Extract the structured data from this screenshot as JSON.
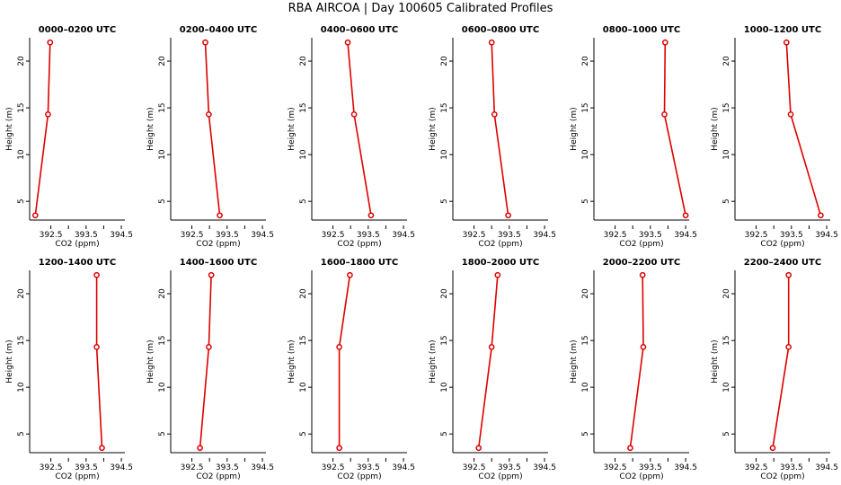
{
  "figure": {
    "title": "RBA AIRCOA | Day 100605 Calibrated Profiles"
  },
  "colors": {
    "series": "#dd0000",
    "axes": "#000000",
    "background": "#ffffff"
  },
  "chart_data": [
    {
      "type": "line",
      "title": "0000–0200 UTC",
      "xlabel": "CO2 (ppm)",
      "ylabel": "Height (m)",
      "xlim": [
        391.9,
        394.6
      ],
      "ylim": [
        3,
        22.5
      ],
      "xticks": [
        "392.5",
        "393.5",
        "394.5"
      ],
      "yticks": [
        "5",
        "10",
        "15",
        "20"
      ],
      "x": [
        392.48,
        392.42,
        392.06
      ],
      "y": [
        22,
        14.3,
        3.5
      ]
    },
    {
      "type": "line",
      "title": "0200–0400 UTC",
      "xlabel": "CO2 (ppm)",
      "ylabel": "Height (m)",
      "xlim": [
        391.9,
        394.6
      ],
      "ylim": [
        3,
        22.5
      ],
      "xticks": [
        "392.5",
        "393.5",
        "394.5"
      ],
      "yticks": [
        "5",
        "10",
        "15",
        "20"
      ],
      "x": [
        392.88,
        392.98,
        393.29
      ],
      "y": [
        22,
        14.3,
        3.5
      ]
    },
    {
      "type": "line",
      "title": "0400–0600 UTC",
      "xlabel": "CO2 (ppm)",
      "ylabel": "Height (m)",
      "xlim": [
        391.9,
        394.6
      ],
      "ylim": [
        3,
        22.5
      ],
      "xticks": [
        "392.5",
        "393.5",
        "394.5"
      ],
      "yticks": [
        "5",
        "10",
        "15",
        "20"
      ],
      "x": [
        392.92,
        393.1,
        393.58
      ],
      "y": [
        22,
        14.3,
        3.5
      ]
    },
    {
      "type": "line",
      "title": "0600–0800 UTC",
      "xlabel": "CO2 (ppm)",
      "ylabel": "Height (m)",
      "xlim": [
        391.9,
        394.6
      ],
      "ylim": [
        3,
        22.5
      ],
      "xticks": [
        "392.5",
        "393.5",
        "394.5"
      ],
      "yticks": [
        "5",
        "10",
        "15",
        "20"
      ],
      "x": [
        393.0,
        393.08,
        393.47
      ],
      "y": [
        22,
        14.3,
        3.5
      ]
    },
    {
      "type": "line",
      "title": "0800–1000 UTC",
      "xlabel": "CO2 (ppm)",
      "ylabel": "Height (m)",
      "xlim": [
        391.9,
        394.6
      ],
      "ylim": [
        3,
        22.5
      ],
      "xticks": [
        "392.5",
        "393.5",
        "394.5"
      ],
      "yticks": [
        "5",
        "10",
        "15",
        "20"
      ],
      "x": [
        393.92,
        393.9,
        394.5
      ],
      "y": [
        22,
        14.3,
        3.5
      ]
    },
    {
      "type": "line",
      "title": "1000–1200 UTC",
      "xlabel": "CO2 (ppm)",
      "ylabel": "Height (m)",
      "xlim": [
        391.9,
        394.6
      ],
      "ylim": [
        3,
        22.5
      ],
      "xticks": [
        "392.5",
        "393.5",
        "394.5"
      ],
      "yticks": [
        "5",
        "10",
        "15",
        "20"
      ],
      "x": [
        393.36,
        393.48,
        394.33
      ],
      "y": [
        22,
        14.3,
        3.5
      ]
    },
    {
      "type": "line",
      "title": "1200–1400 UTC",
      "xlabel": "CO2 (ppm)",
      "ylabel": "Height (m)",
      "xlim": [
        391.9,
        394.6
      ],
      "ylim": [
        3,
        22.5
      ],
      "xticks": [
        "392.5",
        "393.5",
        "394.5"
      ],
      "yticks": [
        "5",
        "10",
        "15",
        "20"
      ],
      "x": [
        393.8,
        393.8,
        393.95
      ],
      "y": [
        22,
        14.3,
        3.5
      ]
    },
    {
      "type": "line",
      "title": "1400–1600 UTC",
      "xlabel": "CO2 (ppm)",
      "ylabel": "Height (m)",
      "xlim": [
        391.9,
        394.6
      ],
      "ylim": [
        3,
        22.5
      ],
      "xticks": [
        "392.5",
        "393.5",
        "394.5"
      ],
      "yticks": [
        "5",
        "10",
        "15",
        "20"
      ],
      "x": [
        393.05,
        392.98,
        392.73
      ],
      "y": [
        22,
        14.3,
        3.5
      ]
    },
    {
      "type": "line",
      "title": "1600–1800 UTC",
      "xlabel": "CO2 (ppm)",
      "ylabel": "Height (m)",
      "xlim": [
        391.9,
        394.6
      ],
      "ylim": [
        3,
        22.5
      ],
      "xticks": [
        "392.5",
        "393.5",
        "394.5"
      ],
      "yticks": [
        "5",
        "10",
        "15",
        "20"
      ],
      "x": [
        392.98,
        392.68,
        392.68
      ],
      "y": [
        22,
        14.3,
        3.5
      ]
    },
    {
      "type": "line",
      "title": "1800–2000 UTC",
      "xlabel": "CO2 (ppm)",
      "ylabel": "Height (m)",
      "xlim": [
        391.9,
        394.6
      ],
      "ylim": [
        3,
        22.5
      ],
      "xticks": [
        "392.5",
        "393.5",
        "394.5"
      ],
      "yticks": [
        "5",
        "10",
        "15",
        "20"
      ],
      "x": [
        393.17,
        393.0,
        392.63
      ],
      "y": [
        22,
        14.3,
        3.5
      ]
    },
    {
      "type": "line",
      "title": "2000–2200 UTC",
      "xlabel": "CO2 (ppm)",
      "ylabel": "Height (m)",
      "xlim": [
        391.9,
        394.6
      ],
      "ylim": [
        3,
        22.5
      ],
      "xticks": [
        "392.5",
        "393.5",
        "394.5"
      ],
      "yticks": [
        "5",
        "10",
        "15",
        "20"
      ],
      "x": [
        393.28,
        393.3,
        392.93
      ],
      "y": [
        22,
        14.3,
        3.5
      ]
    },
    {
      "type": "line",
      "title": "2200–2400 UTC",
      "xlabel": "CO2 (ppm)",
      "ylabel": "Height (m)",
      "xlim": [
        391.9,
        394.6
      ],
      "ylim": [
        3,
        22.5
      ],
      "xticks": [
        "392.5",
        "393.5",
        "394.5"
      ],
      "yticks": [
        "5",
        "10",
        "15",
        "20"
      ],
      "x": [
        393.42,
        393.42,
        392.97
      ],
      "y": [
        22,
        14.3,
        3.5
      ]
    }
  ]
}
